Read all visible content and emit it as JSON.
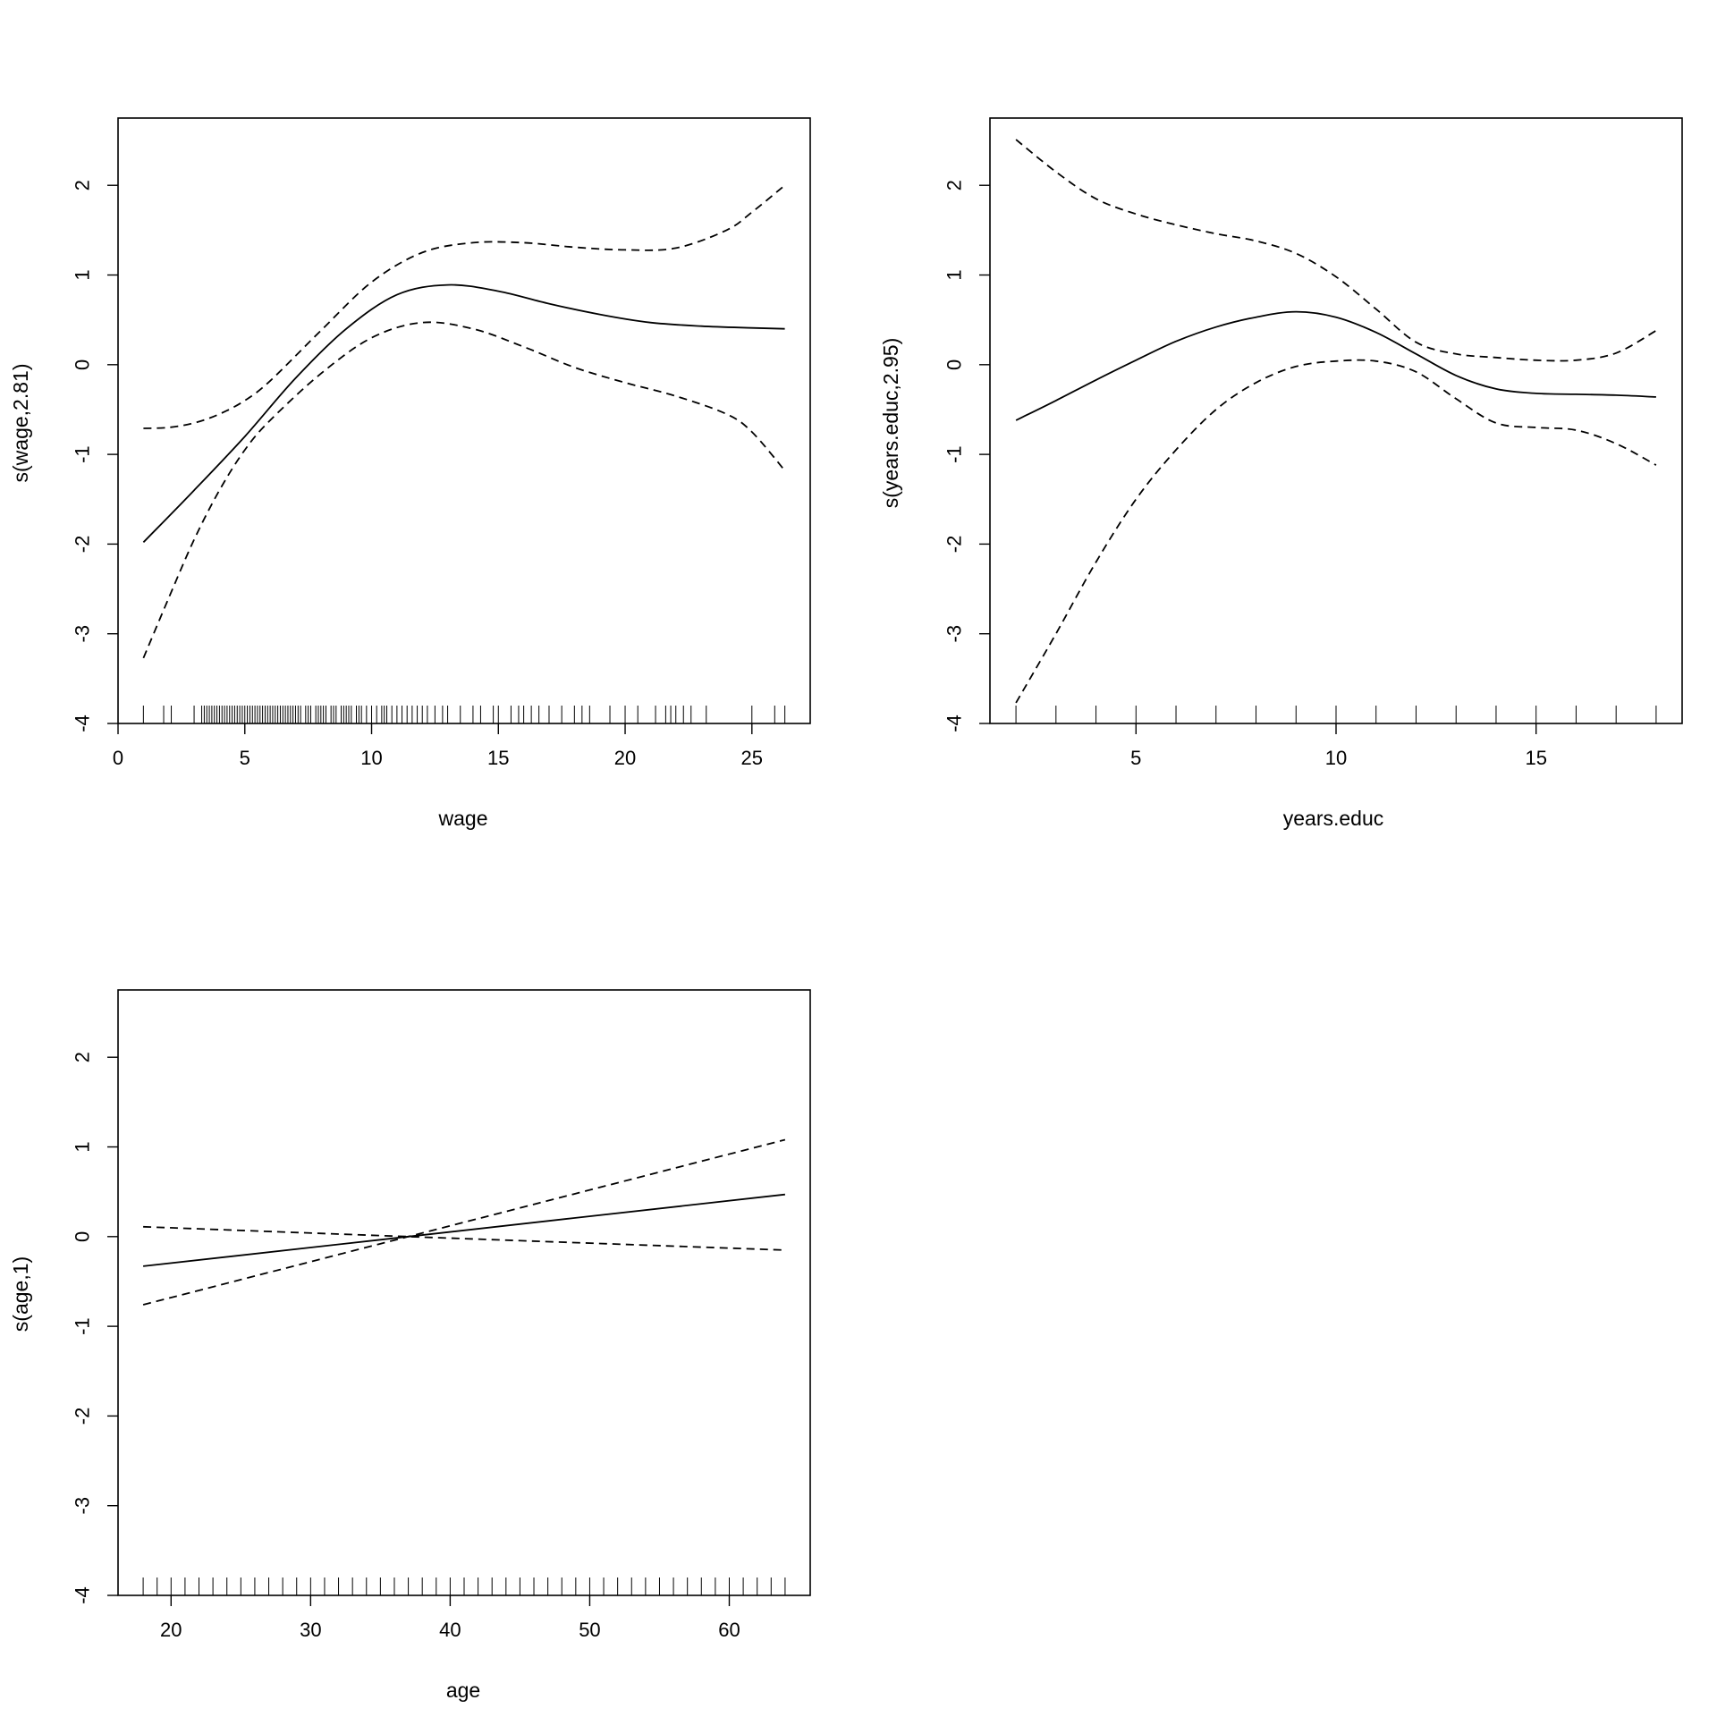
{
  "chart_data": [
    {
      "type": "line",
      "xlabel": "wage",
      "ylabel": "s(wage,2.81)",
      "xlim": [
        0,
        27.3
      ],
      "ylim": [
        -4,
        2.75
      ],
      "xticks": [
        0,
        5,
        10,
        15,
        20,
        25
      ],
      "yticks": [
        -4,
        -3,
        -2,
        -1,
        0,
        1,
        2
      ],
      "series": [
        {
          "style": "solid",
          "points": [
            [
              1,
              -1.98
            ],
            [
              3,
              -1.4
            ],
            [
              5,
              -0.8
            ],
            [
              7,
              -0.15
            ],
            [
              9,
              0.4
            ],
            [
              11,
              0.78
            ],
            [
              13,
              0.89
            ],
            [
              15,
              0.82
            ],
            [
              17,
              0.68
            ],
            [
              19,
              0.56
            ],
            [
              21,
              0.47
            ],
            [
              23,
              0.43
            ],
            [
              25,
              0.41
            ],
            [
              26.3,
              0.4
            ]
          ]
        },
        {
          "style": "dashed",
          "points": [
            [
              1,
              -0.71
            ],
            [
              2,
              -0.7
            ],
            [
              3,
              -0.65
            ],
            [
              4,
              -0.55
            ],
            [
              5,
              -0.4
            ],
            [
              6,
              -0.18
            ],
            [
              8,
              0.38
            ],
            [
              10,
              0.92
            ],
            [
              12,
              1.25
            ],
            [
              14,
              1.36
            ],
            [
              16,
              1.36
            ],
            [
              18,
              1.31
            ],
            [
              20,
              1.28
            ],
            [
              22,
              1.3
            ],
            [
              24,
              1.5
            ],
            [
              25,
              1.7
            ],
            [
              26.3,
              2.0
            ]
          ]
        },
        {
          "style": "dashed",
          "points": [
            [
              1,
              -3.27
            ],
            [
              2,
              -2.6
            ],
            [
              3,
              -1.95
            ],
            [
              4,
              -1.4
            ],
            [
              5,
              -0.95
            ],
            [
              6,
              -0.62
            ],
            [
              8,
              -0.1
            ],
            [
              10,
              0.3
            ],
            [
              12,
              0.47
            ],
            [
              14,
              0.4
            ],
            [
              16,
              0.2
            ],
            [
              18,
              -0.03
            ],
            [
              20,
              -0.2
            ],
            [
              22,
              -0.35
            ],
            [
              24,
              -0.55
            ],
            [
              25,
              -0.75
            ],
            [
              26.3,
              -1.18
            ]
          ]
        }
      ],
      "rug": [
        1,
        1.8,
        2.1,
        3,
        3.3,
        3.4,
        3.5,
        3.6,
        3.7,
        3.8,
        3.9,
        4,
        4.1,
        4.2,
        4.3,
        4.4,
        4.5,
        4.6,
        4.7,
        4.8,
        4.9,
        5,
        5.1,
        5.2,
        5.3,
        5.4,
        5.5,
        5.6,
        5.7,
        5.8,
        5.9,
        6,
        6.1,
        6.2,
        6.3,
        6.4,
        6.5,
        6.6,
        6.7,
        6.8,
        6.9,
        7,
        7.1,
        7.2,
        7.4,
        7.5,
        7.6,
        7.8,
        7.9,
        8,
        8.1,
        8.2,
        8.4,
        8.5,
        8.6,
        8.8,
        8.9,
        9,
        9.1,
        9.2,
        9.4,
        9.5,
        9.6,
        9.8,
        10,
        10.2,
        10.4,
        10.5,
        10.6,
        10.8,
        11,
        11.2,
        11.4,
        11.6,
        11.8,
        12,
        12.2,
        12.5,
        12.8,
        13,
        13.5,
        14,
        14.3,
        14.8,
        15,
        15.5,
        15.8,
        16,
        16.3,
        16.6,
        17,
        17.5,
        18,
        18.3,
        18.6,
        19.4,
        20,
        20.5,
        21.2,
        21.6,
        21.8,
        22,
        22.3,
        22.6,
        23.2,
        25,
        25.9,
        26.3
      ]
    },
    {
      "type": "line",
      "xlabel": "years.educ",
      "ylabel": "s(years.educ,2.95)",
      "xlim": [
        1.35,
        18.65
      ],
      "ylim": [
        -4,
        2.75
      ],
      "xticks": [
        5,
        10,
        15
      ],
      "yticks": [
        -4,
        -3,
        -2,
        -1,
        0,
        1,
        2
      ],
      "series": [
        {
          "style": "solid",
          "points": [
            [
              2,
              -0.62
            ],
            [
              3,
              -0.4
            ],
            [
              4,
              -0.17
            ],
            [
              5,
              0.05
            ],
            [
              6,
              0.26
            ],
            [
              7,
              0.42
            ],
            [
              8,
              0.53
            ],
            [
              9,
              0.59
            ],
            [
              10,
              0.53
            ],
            [
              11,
              0.36
            ],
            [
              12,
              0.12
            ],
            [
              13,
              -0.12
            ],
            [
              14,
              -0.27
            ],
            [
              15,
              -0.32
            ],
            [
              16,
              -0.33
            ],
            [
              17,
              -0.34
            ],
            [
              18,
              -0.36
            ]
          ]
        },
        {
          "style": "dashed",
          "points": [
            [
              2,
              2.51
            ],
            [
              3,
              2.15
            ],
            [
              4,
              1.85
            ],
            [
              5,
              1.68
            ],
            [
              6,
              1.56
            ],
            [
              7,
              1.46
            ],
            [
              8,
              1.38
            ],
            [
              9,
              1.24
            ],
            [
              10,
              0.98
            ],
            [
              11,
              0.62
            ],
            [
              12,
              0.25
            ],
            [
              13,
              0.12
            ],
            [
              14,
              0.08
            ],
            [
              15,
              0.05
            ],
            [
              16,
              0.05
            ],
            [
              17,
              0.13
            ],
            [
              18,
              0.38
            ]
          ]
        },
        {
          "style": "dashed",
          "points": [
            [
              2,
              -3.77
            ],
            [
              3,
              -3.0
            ],
            [
              4,
              -2.2
            ],
            [
              5,
              -1.5
            ],
            [
              6,
              -0.95
            ],
            [
              7,
              -0.5
            ],
            [
              8,
              -0.2
            ],
            [
              9,
              -0.02
            ],
            [
              10,
              0.04
            ],
            [
              11,
              0.04
            ],
            [
              12,
              -0.08
            ],
            [
              13,
              -0.38
            ],
            [
              14,
              -0.65
            ],
            [
              15,
              -0.7
            ],
            [
              16,
              -0.73
            ],
            [
              17,
              -0.88
            ],
            [
              18,
              -1.12
            ]
          ]
        }
      ],
      "rug": [
        2,
        3,
        4,
        5,
        6,
        7,
        8,
        9,
        10,
        11,
        12,
        13,
        14,
        15,
        16,
        17,
        18
      ]
    },
    {
      "type": "line",
      "xlabel": "age",
      "ylabel": "s(age,1)",
      "xlim": [
        16.2,
        65.8
      ],
      "ylim": [
        -4,
        2.75
      ],
      "xticks": [
        20,
        30,
        40,
        50,
        60
      ],
      "yticks": [
        -4,
        -3,
        -2,
        -1,
        0,
        1,
        2
      ],
      "series": [
        {
          "style": "solid",
          "points": [
            [
              18,
              -0.33
            ],
            [
              37,
              0
            ],
            [
              64,
              0.47
            ]
          ]
        },
        {
          "style": "dashed",
          "points": [
            [
              18,
              0.11
            ],
            [
              37,
              0
            ],
            [
              64,
              -0.15
            ]
          ]
        },
        {
          "style": "dashed",
          "points": [
            [
              18,
              -0.76
            ],
            [
              37,
              0
            ],
            [
              64,
              1.08
            ]
          ]
        }
      ],
      "rug": [
        18,
        19,
        20,
        21,
        22,
        23,
        24,
        25,
        26,
        27,
        28,
        29,
        30,
        31,
        32,
        33,
        34,
        35,
        36,
        37,
        38,
        39,
        40,
        41,
        42,
        43,
        44,
        45,
        46,
        47,
        48,
        49,
        50,
        51,
        52,
        53,
        54,
        55,
        56,
        57,
        58,
        59,
        60,
        61,
        62,
        63,
        64
      ]
    }
  ]
}
